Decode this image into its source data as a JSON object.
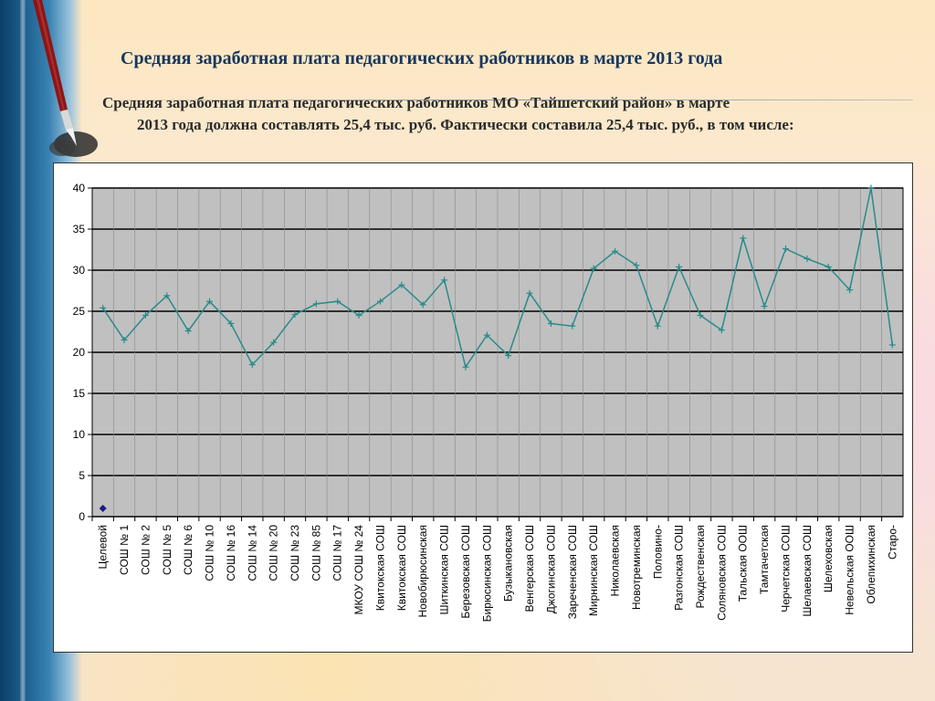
{
  "title": "Средняя заработная плата педагогических работников в марте 2013 года",
  "intro_line1": "Средняя заработная плата педагогических работников МО «Тайшетский район» в марте",
  "intro_line2": "2013 года должна составлять 25,4 тыс. руб. Фактически составила 25,4 тыс. руб., в том числе:",
  "colors": {
    "title": "#17375e",
    "plot_background": "#c0c0c0",
    "grid": "#000000",
    "series_line": "#2a8a8a",
    "target_marker": "#1a1a8c"
  },
  "chart_data": {
    "type": "line",
    "ylim": [
      0,
      40
    ],
    "yticks": [
      "0",
      "5",
      "10",
      "15",
      "20",
      "25",
      "30",
      "35",
      "40"
    ],
    "grid": true,
    "categories": [
      "Целевой",
      "СОШ № 1",
      "СОШ № 2",
      "СОШ № 5",
      "СОШ № 6",
      "СОШ № 10",
      "СОШ № 16",
      "СОШ № 14",
      "СОШ № 20",
      "СОШ № 23",
      "СОШ № 85",
      "СОШ № 17",
      "МКОУ СОШ № 24",
      "Квитокская СОШ",
      "Квитокская СОШ",
      "Новобирюсинская",
      "Шиткинская СОШ",
      "Березовская СОШ",
      "Бирюсинская СОШ",
      "Бузыкановская",
      "Венгерская СОШ",
      "Джогинская СОШ",
      "Зареченская СОШ",
      "Мирнинская СОШ",
      "Николаевская",
      "Новотреминская",
      "Половино-",
      "Разгонская СОШ",
      "Рождественская",
      "Соляновская СОШ",
      "Тальская ООШ",
      "Тамтачетская",
      "Черчетская СОШ",
      "Шелаевская СОШ",
      "Шелеховская",
      "Невельская ООШ",
      "Облепихинская",
      "Старо-"
    ],
    "series": [
      {
        "values": [
          25.4,
          21.5,
          24.5,
          26.9,
          22.6,
          26.2,
          23.5,
          18.5,
          21.2,
          24.6,
          25.9,
          26.2,
          24.5,
          26.2,
          28.2,
          25.8,
          28.8,
          18.2,
          22.1,
          19.6,
          27.2,
          23.5,
          23.2,
          30.2,
          32.3,
          30.6,
          23.2,
          30.4,
          24.5,
          22.7,
          33.9,
          25.6,
          32.6,
          31.4,
          30.4,
          27.6,
          40.0,
          20.9
        ]
      }
    ],
    "target_marker": {
      "category": "Целевой",
      "value": 1.0
    }
  }
}
